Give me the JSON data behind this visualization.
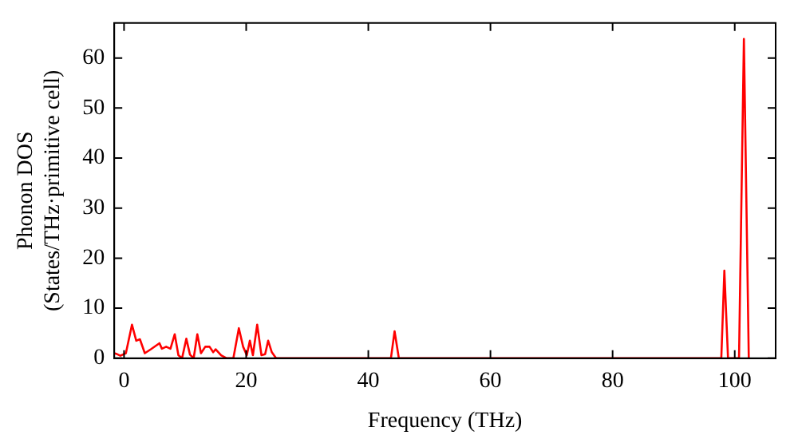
{
  "chart_data": {
    "type": "line",
    "xlabel": "Frequency (THz)",
    "ylabel": "Phonon DOS\n(States/THz·primitive cell)",
    "series": [
      {
        "color": "#ff0000",
        "x": [
          -1.6,
          -1.3,
          -0.6,
          0.3,
          1.3,
          2.0,
          2.6,
          3.4,
          4.4,
          5.8,
          6.2,
          6.9,
          7.6,
          8.3,
          8.9,
          9.5,
          10.2,
          10.8,
          11.4,
          12.0,
          12.6,
          13.3,
          14.0,
          14.6,
          15.0,
          15.9,
          16.8,
          17.9,
          18.8,
          19.5,
          20.1,
          20.6,
          21.1,
          21.8,
          22.5,
          23.1,
          23.6,
          24.2,
          24.9,
          43.7,
          44.3,
          45.0,
          97.8,
          98.3,
          98.9,
          100.7,
          101.5,
          102.3
        ],
        "values": [
          1.0,
          0.9,
          0.5,
          1.0,
          6.7,
          3.5,
          3.8,
          1.0,
          1.8,
          3.0,
          1.9,
          2.3,
          1.9,
          4.8,
          0.6,
          0,
          3.9,
          0.7,
          0,
          4.8,
          1.0,
          2.3,
          2.3,
          1.2,
          1.8,
          0.6,
          0,
          0,
          6.0,
          2.3,
          0.6,
          3.5,
          0.6,
          6.7,
          0.6,
          0.8,
          3.5,
          1.2,
          0,
          0,
          5.4,
          0,
          0,
          17.5,
          0,
          0,
          63.8,
          0
        ]
      }
    ],
    "xlim": [
      -1.6,
      106.7
    ],
    "ylim": [
      0,
      67
    ],
    "xticks": [
      0,
      20,
      40,
      60,
      80,
      100
    ],
    "yticks": [
      0,
      10,
      20,
      30,
      40,
      50,
      60
    ],
    "grid": false,
    "legend": false,
    "marker": "none",
    "line_style": "solid"
  }
}
